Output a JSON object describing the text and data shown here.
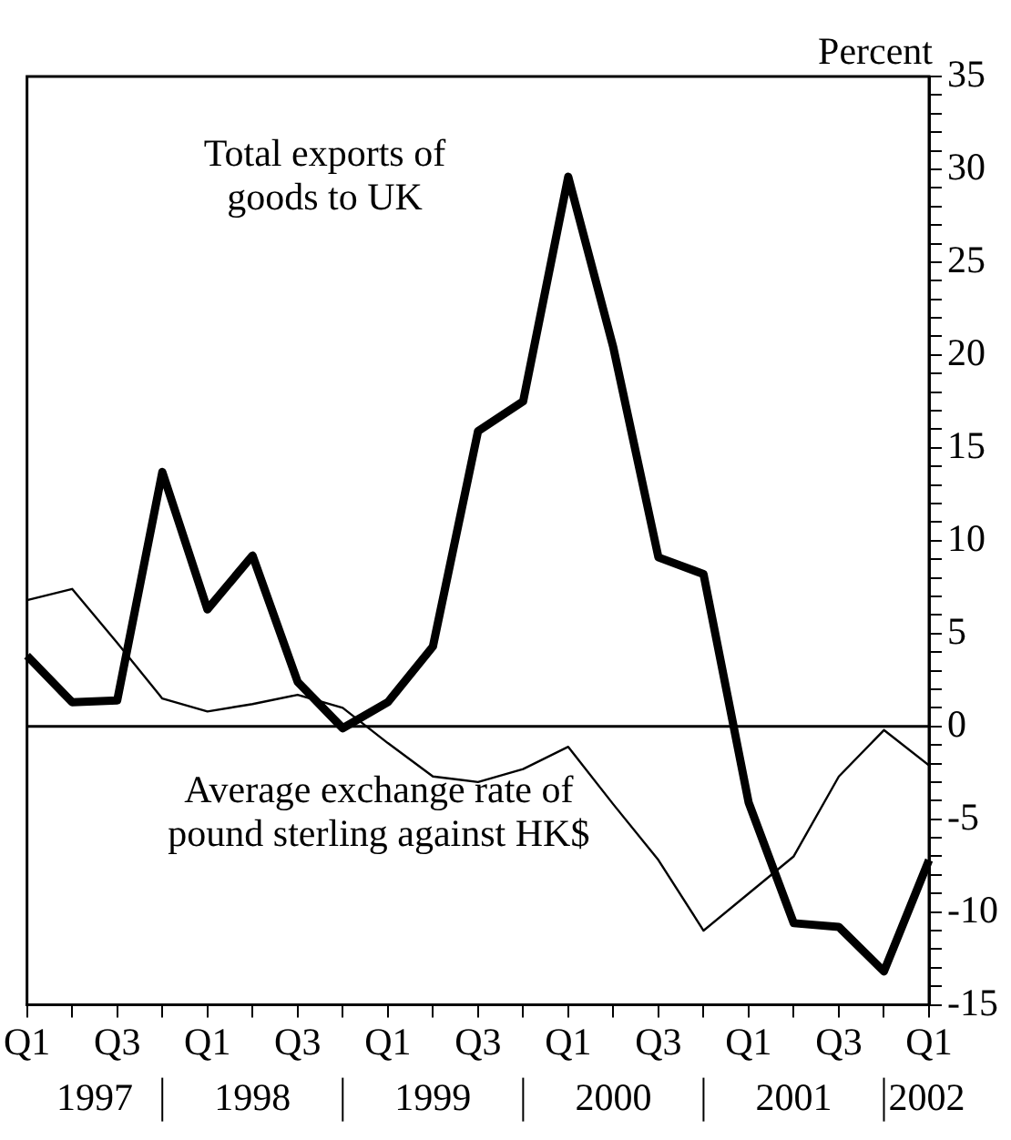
{
  "chart_data": {
    "type": "line",
    "ylabel": "Percent",
    "categories": [
      "Q1",
      null,
      "Q3",
      null,
      "Q1",
      null,
      "Q3",
      null,
      "Q1",
      null,
      "Q3",
      null,
      "Q1",
      null,
      "Q3",
      null,
      "Q1",
      null,
      "Q3",
      null,
      "Q1"
    ],
    "series": [
      {
        "name": "Total exports of goods to UK",
        "color": "#000000",
        "values": [
          3.8,
          1.3,
          1.4,
          13.7,
          6.3,
          9.2,
          2.4,
          -0.1,
          1.3,
          4.3,
          15.9,
          17.5,
          29.6,
          20.4,
          9.1,
          8.2,
          -4.1,
          -10.6,
          -10.8,
          -13.2,
          -7.2
        ]
      },
      {
        "name": "Average exchange rate of pound sterling against HK$",
        "color": "#000000",
        "values": [
          6.8,
          7.4,
          4.5,
          1.5,
          0.8,
          1.2,
          1.7,
          1.0,
          -0.9,
          -2.7,
          -3.0,
          -2.3,
          -1.1,
          -4.2,
          -7.2,
          -11.0,
          -9.0,
          -7.0,
          -2.7,
          -0.2,
          -2.1
        ]
      }
    ],
    "ylim": [
      -15,
      35
    ],
    "yticks": [
      -15,
      {
        "value": -14,
        "label": null
      },
      {
        "value": -13,
        "label": null
      },
      {
        "value": -12,
        "label": null
      },
      {
        "value": -11,
        "label": null
      },
      -10,
      {
        "value": -9,
        "label": null
      },
      {
        "value": -8,
        "label": null
      },
      {
        "value": -7,
        "label": null
      },
      {
        "value": -6,
        "label": null
      },
      -5,
      {
        "value": -4,
        "label": null
      },
      {
        "value": -3,
        "label": null
      },
      {
        "value": -2,
        "label": null
      },
      {
        "value": -1,
        "label": null
      },
      0,
      {
        "value": 1,
        "label": null
      },
      {
        "value": 2,
        "label": null
      },
      {
        "value": 3,
        "label": null
      },
      {
        "value": 4,
        "label": null
      },
      5,
      {
        "value": 6,
        "label": null
      },
      {
        "value": 7,
        "label": null
      },
      {
        "value": 8,
        "label": null
      },
      {
        "value": 9,
        "label": null
      },
      10,
      {
        "value": 11,
        "label": null
      },
      {
        "value": 12,
        "label": null
      },
      {
        "value": 13,
        "label": null
      },
      {
        "value": 14,
        "label": null
      },
      15,
      {
        "value": 16,
        "label": null
      },
      {
        "value": 17,
        "label": null
      },
      {
        "value": 18,
        "label": null
      },
      {
        "value": 19,
        "label": null
      },
      20,
      {
        "value": 21,
        "label": null
      },
      {
        "value": 22,
        "label": null
      },
      {
        "value": 23,
        "label": null
      },
      {
        "value": 24,
        "label": null
      },
      25,
      {
        "value": 26,
        "label": null
      },
      {
        "value": 27,
        "label": null
      },
      {
        "value": 28,
        "label": null
      },
      {
        "value": 29,
        "label": null
      },
      30,
      {
        "value": 31,
        "label": null
      },
      {
        "value": 32,
        "label": null
      },
      {
        "value": 33,
        "label": null
      },
      {
        "value": 34,
        "label": null
      },
      35
    ],
    "ref_lines": [
      {
        "axis": "y",
        "value": 0,
        "color": "#000000"
      }
    ],
    "annotations": [
      "1997",
      "1998",
      "1999",
      "2000",
      "2001",
      "2002"
    ],
    "grid": false,
    "legend": false,
    "marker": "none",
    "line_style": "solid"
  }
}
